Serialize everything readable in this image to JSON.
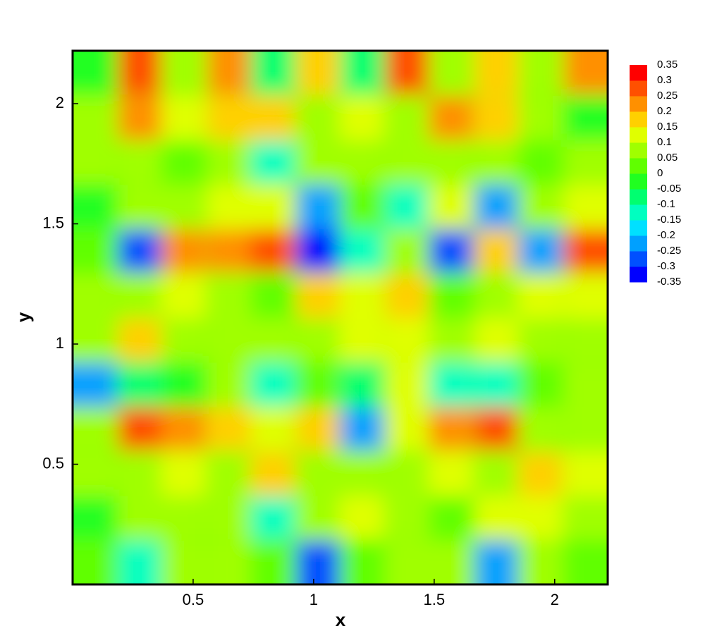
{
  "chart_data": {
    "type": "contour",
    "x_label": "x",
    "y_label": "y",
    "xlim": [
      0,
      2.22
    ],
    "ylim": [
      0,
      2.22
    ],
    "xticks": [
      0.5,
      1,
      1.5,
      2
    ],
    "yticks": [
      0.5,
      1,
      1.5,
      2
    ],
    "x": [
      0.09,
      0.28,
      0.46,
      0.65,
      0.83,
      1.02,
      1.2,
      1.39,
      1.57,
      1.76,
      1.94,
      2.13
    ],
    "y": [
      0.09,
      0.28,
      0.46,
      0.65,
      0.83,
      1.02,
      1.2,
      1.39,
      1.57,
      1.76,
      1.94,
      2.13
    ],
    "z": [
      [
        0.0,
        -0.15,
        0.05,
        0.05,
        0.0,
        -0.25,
        0.0,
        0.05,
        0.05,
        -0.2,
        0.05,
        0.0
      ],
      [
        -0.05,
        0.05,
        0.05,
        0.05,
        -0.15,
        0.05,
        0.1,
        0.05,
        0.0,
        0.1,
        0.1,
        0.05
      ],
      [
        0.05,
        0.05,
        0.1,
        0.05,
        0.15,
        0.05,
        0.05,
        0.05,
        0.1,
        0.05,
        0.15,
        0.1
      ],
      [
        0.05,
        0.25,
        0.2,
        0.15,
        0.1,
        0.15,
        -0.2,
        0.1,
        0.2,
        0.25,
        0.05,
        0.05
      ],
      [
        -0.2,
        -0.1,
        -0.05,
        0.05,
        -0.15,
        0.0,
        -0.1,
        0.1,
        -0.15,
        -0.15,
        0.0,
        0.05
      ],
      [
        0.05,
        0.15,
        0.05,
        0.05,
        0.05,
        0.05,
        0.1,
        0.1,
        0.05,
        0.1,
        0.05,
        0.05
      ],
      [
        0.05,
        0.05,
        0.1,
        0.05,
        0.0,
        0.15,
        0.1,
        0.15,
        0.0,
        0.05,
        0.1,
        0.1
      ],
      [
        0.0,
        -0.25,
        0.2,
        0.2,
        0.25,
        -0.3,
        -0.15,
        0.05,
        -0.25,
        0.15,
        -0.2,
        0.25
      ],
      [
        -0.05,
        0.05,
        0.05,
        0.1,
        0.1,
        -0.2,
        0.0,
        -0.15,
        0.1,
        -0.2,
        0.05,
        0.1
      ],
      [
        0.05,
        0.05,
        0.0,
        0.05,
        -0.15,
        0.05,
        0.05,
        0.05,
        0.05,
        0.05,
        0.0,
        0.05
      ],
      [
        0.05,
        0.2,
        0.1,
        0.15,
        0.15,
        0.05,
        0.1,
        0.05,
        0.2,
        0.15,
        0.05,
        -0.05
      ],
      [
        -0.05,
        0.25,
        0.05,
        0.2,
        -0.1,
        0.15,
        -0.1,
        0.25,
        0.05,
        0.15,
        0.05,
        0.2
      ]
    ],
    "levels": [
      -0.35,
      -0.3,
      -0.25,
      -0.2,
      -0.15,
      -0.1,
      -0.05,
      0,
      0.05,
      0.1,
      0.15,
      0.2,
      0.25,
      0.3,
      0.35
    ],
    "colors": [
      "#0000ff",
      "#0050ff",
      "#00a0ff",
      "#00e0ff",
      "#00ffc0",
      "#00ff70",
      "#20ff20",
      "#60ff00",
      "#a0ff00",
      "#e0ff00",
      "#ffd000",
      "#ff9000",
      "#ff5000",
      "#ff0000"
    ]
  }
}
